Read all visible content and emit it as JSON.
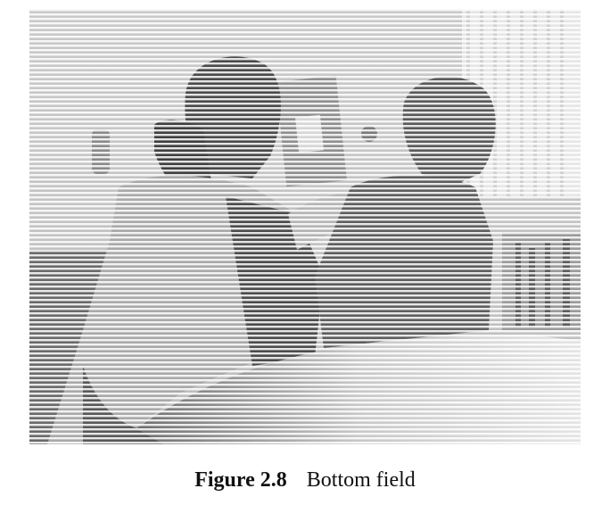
{
  "figure": {
    "label": "Figure 2.8",
    "title": "Bottom field",
    "image_description_icon": "interlaced-field-photo"
  },
  "colors": {
    "background": "#ffffff",
    "scanline_dark": "#3a3a3a",
    "text": "#111111"
  }
}
